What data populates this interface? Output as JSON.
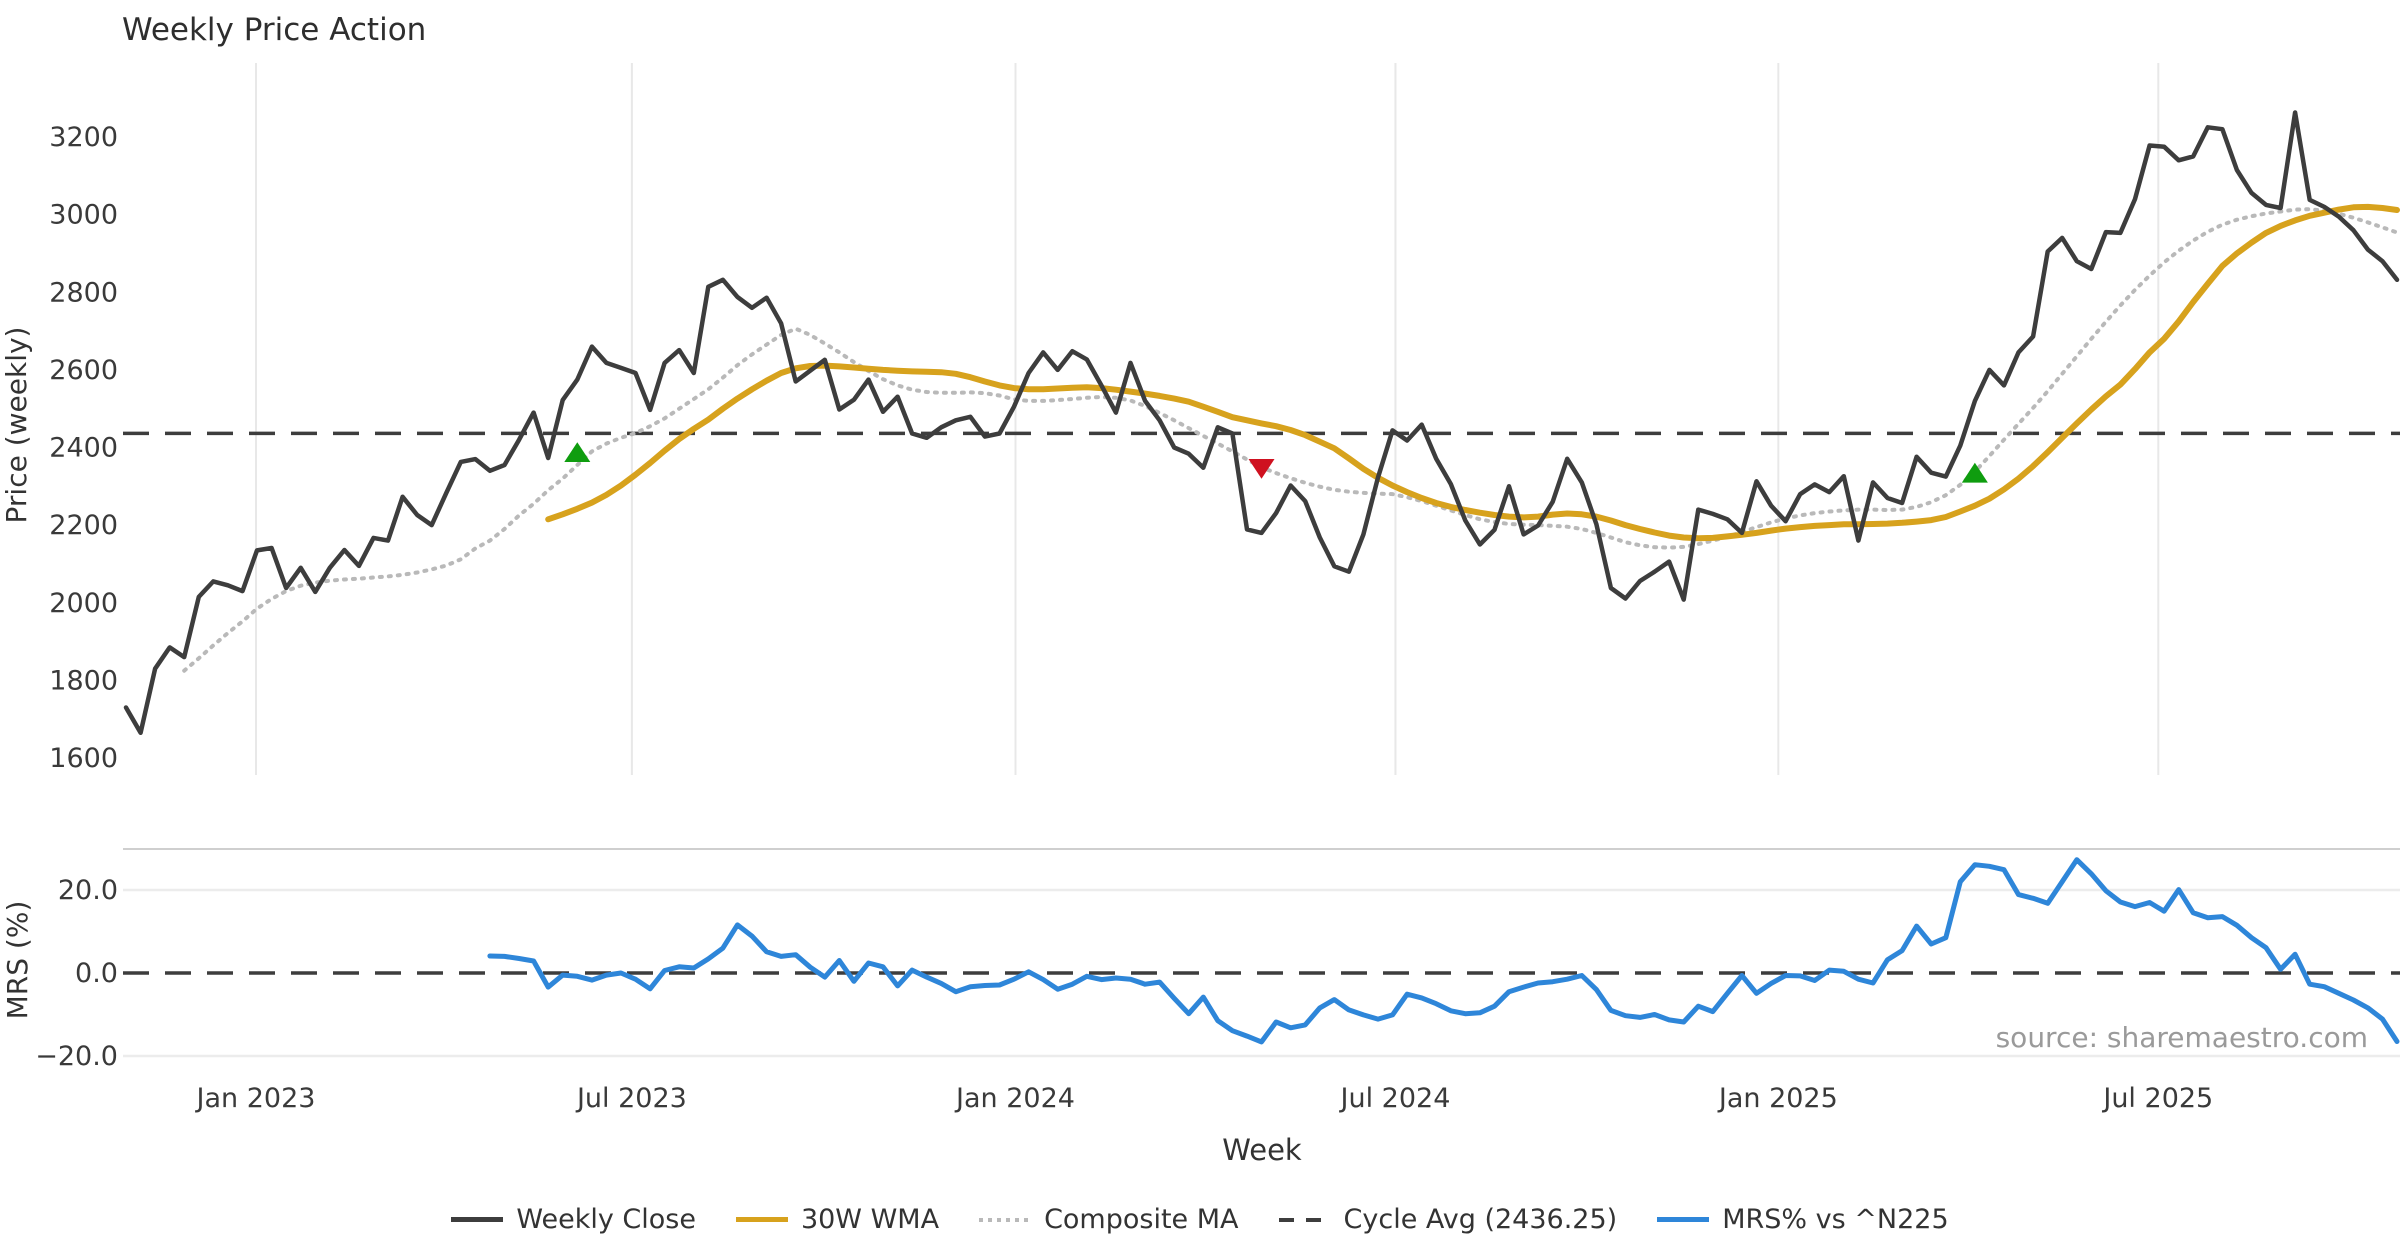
{
  "title": "Weekly Price Action",
  "source_note": "source: sharemaestro.com",
  "axes": {
    "price_axis_label": "Price (weekly)",
    "mrs_axis_label": "MRS (%)",
    "x_axis_label": "Week",
    "price_tick_labels": [
      "3200",
      "3000",
      "2800",
      "2600",
      "2400",
      "2200",
      "2000",
      "1800",
      "1600"
    ],
    "mrs_tick_labels": [
      "20.0",
      "0.0",
      "−20.0"
    ]
  },
  "legend": [
    {
      "label": "Weekly Close",
      "swatch": "solid",
      "color": "#3d3d3d"
    },
    {
      "label": "30W WMA",
      "swatch": "solid",
      "color": "#d7a21d"
    },
    {
      "label": "Composite MA",
      "swatch": "dotted",
      "color": "#b9b9b9"
    },
    {
      "label": "Cycle Avg (2436.25)",
      "swatch": "dashed",
      "color": "#3d3d3d"
    },
    {
      "label": "MRS% vs ^N225",
      "swatch": "solid",
      "color": "#2e86d9"
    }
  ],
  "chart_data": {
    "type": "line",
    "title": "Weekly Price Action",
    "x_unit": "week_index",
    "n_weeks": 157,
    "x_ticks": [
      {
        "label": "Jan 2023",
        "week": 8.93
      },
      {
        "label": "Jul 2023",
        "week": 34.75
      },
      {
        "label": "Jan 2024",
        "week": 61.1
      },
      {
        "label": "Jul 2024",
        "week": 87.2
      },
      {
        "label": "Jan 2025",
        "week": 113.5
      },
      {
        "label": "Jul 2025",
        "week": 139.6
      }
    ],
    "price_panel": {
      "ylabel": "Price (weekly)",
      "yticks": [
        3200,
        3000,
        2800,
        2600,
        2400,
        2200,
        2000,
        1800,
        1600
      ],
      "ylim": [
        1557,
        3390
      ],
      "cycle_avg": 2436.25,
      "grid": "vertical-only"
    },
    "mrs_panel": {
      "ylabel": "MRS (%)",
      "yticks": [
        20.0,
        0.0,
        -20.0
      ],
      "ylim": [
        -24.6,
        29.9
      ],
      "zero_line": 0,
      "grid": "horizontal-only"
    },
    "series": [
      {
        "name": "Weekly Close",
        "panel": "price",
        "color": "#3d3d3d",
        "style": "solid",
        "width": 4.5,
        "values": [
          1730,
          1665,
          1830,
          1885,
          1860,
          2015,
          2055,
          2045,
          2030,
          2135,
          2141,
          2038,
          2090,
          2028,
          2090,
          2136,
          2095,
          2167,
          2160,
          2273,
          2226,
          2200,
          2283,
          2363,
          2370,
          2340,
          2355,
          2420,
          2490,
          2373,
          2522,
          2575,
          2660,
          2618,
          2605,
          2592,
          2497,
          2618,
          2651,
          2592,
          2814,
          2832,
          2788,
          2760,
          2786,
          2720,
          2570,
          2598,
          2626,
          2498,
          2523,
          2575,
          2492,
          2531,
          2436,
          2425,
          2452,
          2470,
          2479,
          2428,
          2436,
          2505,
          2592,
          2645,
          2600,
          2648,
          2627,
          2560,
          2490,
          2618,
          2520,
          2470,
          2400,
          2384,
          2348,
          2452,
          2436,
          2189,
          2180,
          2231,
          2302,
          2262,
          2168,
          2094,
          2080,
          2176,
          2323,
          2444,
          2418,
          2459,
          2371,
          2306,
          2212,
          2150,
          2188,
          2300,
          2176,
          2199,
          2260,
          2371,
          2310,
          2202,
          2038,
          2011,
          2056,
          2080,
          2106,
          2008,
          2240,
          2229,
          2215,
          2180,
          2313,
          2250,
          2210,
          2280,
          2305,
          2285,
          2326,
          2160,
          2310,
          2270,
          2257,
          2376,
          2335,
          2325,
          2405,
          2520,
          2600,
          2560,
          2645,
          2686,
          2905,
          2940,
          2880,
          2860,
          2955,
          2953,
          3040,
          3178,
          3175,
          3140,
          3150,
          3225,
          3220,
          3115,
          3056,
          3025,
          3017,
          3263,
          3038,
          3020,
          2995,
          2960,
          2910,
          2880,
          2832
        ]
      },
      {
        "name": "30W WMA",
        "panel": "price",
        "color": "#d7a21d",
        "style": "solid",
        "width": 6,
        "values": [
          null,
          null,
          null,
          null,
          null,
          null,
          null,
          null,
          null,
          null,
          null,
          null,
          null,
          null,
          null,
          null,
          null,
          null,
          null,
          null,
          null,
          null,
          null,
          null,
          null,
          null,
          null,
          null,
          null,
          2215,
          2228,
          2242,
          2258,
          2278,
          2302,
          2330,
          2360,
          2392,
          2422,
          2448,
          2472,
          2500,
          2526,
          2550,
          2572,
          2592,
          2604,
          2610,
          2611,
          2609,
          2606,
          2603,
          2600,
          2598,
          2596,
          2595,
          2594,
          2590,
          2581,
          2570,
          2560,
          2553,
          2550,
          2550,
          2552,
          2554,
          2555,
          2553,
          2549,
          2544,
          2539,
          2533,
          2526,
          2518,
          2505,
          2492,
          2478,
          2470,
          2462,
          2455,
          2445,
          2432,
          2415,
          2398,
          2372,
          2345,
          2322,
          2302,
          2285,
          2270,
          2257,
          2247,
          2239,
          2232,
          2226,
          2222,
          2220,
          2222,
          2227,
          2230,
          2228,
          2222,
          2212,
          2200,
          2190,
          2181,
          2173,
          2168,
          2166,
          2167,
          2171,
          2175,
          2180,
          2186,
          2191,
          2195,
          2198,
          2200,
          2202,
          2202,
          2203,
          2204,
          2206,
          2209,
          2213,
          2221,
          2235,
          2250,
          2268,
          2292,
          2320,
          2352,
          2388,
          2425,
          2462,
          2498,
          2532,
          2562,
          2602,
          2645,
          2680,
          2725,
          2775,
          2822,
          2868,
          2900,
          2928,
          2953,
          2971,
          2985,
          2997,
          3005,
          3013,
          3019,
          3020,
          3017,
          3012
        ]
      },
      {
        "name": "Composite MA",
        "panel": "price",
        "color": "#b9b9b9",
        "style": "dotted",
        "width": 4,
        "values": [
          null,
          null,
          null,
          null,
          1825,
          1857,
          1890,
          1922,
          1952,
          1985,
          2010,
          2030,
          2044,
          2052,
          2057,
          2060,
          2062,
          2065,
          2068,
          2072,
          2078,
          2086,
          2096,
          2112,
          2140,
          2160,
          2190,
          2225,
          2255,
          2290,
          2320,
          2355,
          2390,
          2410,
          2425,
          2437,
          2455,
          2475,
          2500,
          2525,
          2550,
          2580,
          2612,
          2640,
          2665,
          2690,
          2706,
          2690,
          2668,
          2645,
          2620,
          2597,
          2576,
          2560,
          2549,
          2543,
          2541,
          2541,
          2542,
          2540,
          2534,
          2524,
          2520,
          2520,
          2522,
          2525,
          2528,
          2530,
          2528,
          2521,
          2507,
          2489,
          2470,
          2450,
          2430,
          2410,
          2390,
          2369,
          2349,
          2334,
          2321,
          2309,
          2299,
          2291,
          2286,
          2283,
          2281,
          2280,
          2272,
          2262,
          2250,
          2238,
          2226,
          2215,
          2208,
          2203,
          2201,
          2200,
          2198,
          2196,
          2190,
          2180,
          2168,
          2156,
          2148,
          2143,
          2142,
          2144,
          2151,
          2160,
          2170,
          2182,
          2195,
          2207,
          2217,
          2225,
          2231,
          2235,
          2238,
          2240,
          2240,
          2239,
          2240,
          2247,
          2259,
          2277,
          2304,
          2338,
          2378,
          2420,
          2461,
          2502,
          2545,
          2590,
          2635,
          2680,
          2724,
          2766,
          2806,
          2843,
          2877,
          2907,
          2933,
          2956,
          2974,
          2987,
          2996,
          3003,
          3008,
          3013,
          3014,
          3010,
          3002,
          2992,
          2980,
          2967,
          2954
        ]
      },
      {
        "name": "MRS% vs ^N225",
        "panel": "mrs",
        "color": "#2e86d9",
        "style": "solid",
        "width": 5,
        "values": [
          null,
          null,
          null,
          null,
          null,
          null,
          null,
          null,
          null,
          null,
          null,
          null,
          null,
          null,
          null,
          null,
          null,
          null,
          null,
          null,
          null,
          null,
          null,
          null,
          null,
          4.1,
          4.0,
          3.5,
          2.9,
          -3.4,
          -0.5,
          -0.8,
          -1.7,
          -0.5,
          0.0,
          -1.5,
          -3.8,
          0.6,
          1.5,
          1.2,
          3.4,
          6.0,
          11.6,
          8.9,
          5.1,
          4.0,
          4.4,
          1.4,
          -1.0,
          3.0,
          -2.0,
          2.4,
          1.5,
          -3.1,
          0.7,
          -1.0,
          -2.5,
          -4.5,
          -3.3,
          -3.0,
          -2.9,
          -1.5,
          0.3,
          -1.6,
          -3.9,
          -2.7,
          -0.8,
          -1.6,
          -1.2,
          -1.5,
          -2.7,
          -2.2,
          -6.1,
          -9.8,
          -5.8,
          -11.5,
          -13.9,
          -15.2,
          -16.6,
          -11.8,
          -13.2,
          -12.5,
          -8.4,
          -6.4,
          -8.9,
          -10.1,
          -11.1,
          -10.1,
          -5.1,
          -6.0,
          -7.4,
          -9.1,
          -9.8,
          -9.6,
          -8.0,
          -4.5,
          -3.4,
          -2.4,
          -2.1,
          -1.5,
          -0.6,
          -4.0,
          -9.0,
          -10.3,
          -10.7,
          -10.0,
          -11.3,
          -11.8,
          -8.0,
          -9.3,
          -4.9,
          -0.6,
          -4.9,
          -2.5,
          -0.6,
          -0.7,
          -1.8,
          0.7,
          0.4,
          -1.5,
          -2.4,
          3.2,
          5.4,
          11.3,
          7.0,
          8.5,
          22.0,
          26.1,
          25.7,
          24.9,
          18.9,
          18.0,
          16.8,
          22.0,
          27.3,
          23.9,
          19.8,
          17.1,
          16.0,
          17.0,
          14.9,
          20.1,
          14.5,
          13.3,
          13.6,
          11.5,
          8.5,
          6.1,
          0.9,
          4.5,
          -2.7,
          -3.3,
          -4.9,
          -6.5,
          -8.4,
          -11.1,
          -16.5
        ]
      }
    ],
    "markers": [
      {
        "type": "buy",
        "shape": "triangle-up",
        "color": "#0f9d0f",
        "week": 31,
        "price": 2383
      },
      {
        "type": "sell",
        "shape": "triangle-down",
        "color": "#cf1120",
        "week": 78,
        "price": 2350
      },
      {
        "type": "buy",
        "shape": "triangle-up",
        "color": "#0f9d0f",
        "week": 127,
        "price": 2330
      }
    ],
    "annotations": [
      "source: sharemaestro.com"
    ],
    "legend_entries": [
      "Weekly Close",
      "30W WMA",
      "Composite MA",
      "Cycle Avg (2436.25)",
      "MRS% vs ^N225"
    ],
    "legend_position": "bottom-center"
  }
}
